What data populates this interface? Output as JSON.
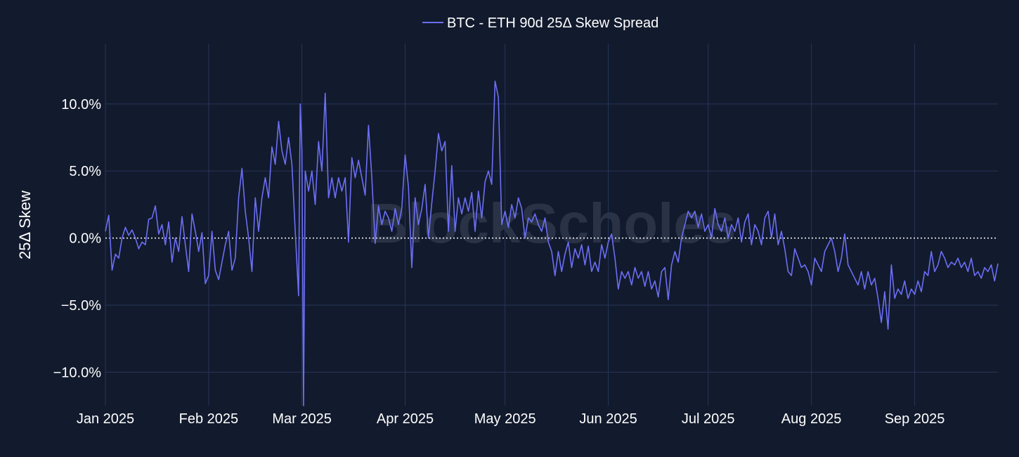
{
  "chart_data": {
    "type": "line",
    "series": [
      {
        "name": "BTC - ETH 90d 25Δ Skew Spread",
        "color": "#6b6ff5",
        "points": [
          [
            "2025-01-01",
            0.5
          ],
          [
            "2025-01-02",
            1.7
          ],
          [
            "2025-01-03",
            -2.4
          ],
          [
            "2025-01-04",
            -1.2
          ],
          [
            "2025-01-05",
            -1.5
          ],
          [
            "2025-01-06",
            0.0
          ],
          [
            "2025-01-07",
            0.8
          ],
          [
            "2025-01-08",
            0.2
          ],
          [
            "2025-01-09",
            0.6
          ],
          [
            "2025-01-10",
            0.0
          ],
          [
            "2025-01-11",
            -0.8
          ],
          [
            "2025-01-12",
            -0.3
          ],
          [
            "2025-01-13",
            -0.5
          ],
          [
            "2025-01-14",
            1.4
          ],
          [
            "2025-01-15",
            1.5
          ],
          [
            "2025-01-16",
            2.4
          ],
          [
            "2025-01-17",
            0.3
          ],
          [
            "2025-01-18",
            1.0
          ],
          [
            "2025-01-19",
            -0.5
          ],
          [
            "2025-01-20",
            1.2
          ],
          [
            "2025-01-21",
            -1.8
          ],
          [
            "2025-01-22",
            0.0
          ],
          [
            "2025-01-23",
            -1.0
          ],
          [
            "2025-01-24",
            1.6
          ],
          [
            "2025-01-25",
            -0.5
          ],
          [
            "2025-01-26",
            -2.5
          ],
          [
            "2025-01-27",
            1.8
          ],
          [
            "2025-01-28",
            0.5
          ],
          [
            "2025-01-29",
            -1.0
          ],
          [
            "2025-01-30",
            0.4
          ],
          [
            "2025-01-31",
            -3.4
          ],
          [
            "2025-02-01",
            -2.8
          ],
          [
            "2025-02-02",
            0.5
          ],
          [
            "2025-02-03",
            -2.4
          ],
          [
            "2025-02-04",
            -3.1
          ],
          [
            "2025-02-05",
            -1.8
          ],
          [
            "2025-02-06",
            -0.5
          ],
          [
            "2025-02-07",
            0.5
          ],
          [
            "2025-02-08",
            -2.4
          ],
          [
            "2025-02-09",
            -1.5
          ],
          [
            "2025-02-10",
            3.0
          ],
          [
            "2025-02-11",
            5.2
          ],
          [
            "2025-02-12",
            2.0
          ],
          [
            "2025-02-13",
            0.0
          ],
          [
            "2025-02-14",
            -2.5
          ],
          [
            "2025-02-15",
            3.0
          ],
          [
            "2025-02-16",
            0.5
          ],
          [
            "2025-02-17",
            3.0
          ],
          [
            "2025-02-18",
            4.5
          ],
          [
            "2025-02-19",
            3.0
          ],
          [
            "2025-02-20",
            6.8
          ],
          [
            "2025-02-21",
            5.5
          ],
          [
            "2025-02-22",
            8.7
          ],
          [
            "2025-02-23",
            6.5
          ],
          [
            "2025-02-24",
            5.5
          ],
          [
            "2025-02-25",
            7.5
          ],
          [
            "2025-02-26",
            5.5
          ],
          [
            "2025-02-27",
            0.5
          ],
          [
            "2025-02-28",
            -4.3
          ],
          [
            "2025-02-28T12",
            10.0
          ],
          [
            "2025-03-01",
            6.6
          ],
          [
            "2025-03-01T12",
            -12.5
          ],
          [
            "2025-03-02",
            5.0
          ],
          [
            "2025-03-03",
            3.5
          ],
          [
            "2025-03-04",
            5.0
          ],
          [
            "2025-03-05",
            2.5
          ],
          [
            "2025-03-06",
            7.2
          ],
          [
            "2025-03-07",
            5.0
          ],
          [
            "2025-03-08",
            10.8
          ],
          [
            "2025-03-09",
            3.0
          ],
          [
            "2025-03-10",
            4.5
          ],
          [
            "2025-03-11",
            3.0
          ],
          [
            "2025-03-12",
            4.5
          ],
          [
            "2025-03-13",
            3.5
          ],
          [
            "2025-03-14",
            4.5
          ],
          [
            "2025-03-15",
            -0.3
          ],
          [
            "2025-03-16",
            6.0
          ],
          [
            "2025-03-17",
            4.5
          ],
          [
            "2025-03-18",
            5.8
          ],
          [
            "2025-03-19",
            4.5
          ],
          [
            "2025-03-20",
            3.2
          ],
          [
            "2025-03-21",
            8.4
          ],
          [
            "2025-03-22",
            4.5
          ],
          [
            "2025-03-23",
            -0.4
          ],
          [
            "2025-03-24",
            2.4
          ],
          [
            "2025-03-25",
            1.0
          ],
          [
            "2025-03-26",
            2.0
          ],
          [
            "2025-03-27",
            1.5
          ],
          [
            "2025-03-28",
            0.5
          ],
          [
            "2025-03-29",
            2.2
          ],
          [
            "2025-03-30",
            1.0
          ],
          [
            "2025-03-31",
            2.2
          ],
          [
            "2025-04-01",
            6.2
          ],
          [
            "2025-04-02",
            3.8
          ],
          [
            "2025-04-03",
            -2.2
          ],
          [
            "2025-04-04",
            3.0
          ],
          [
            "2025-04-05",
            1.0
          ],
          [
            "2025-04-06",
            2.2
          ],
          [
            "2025-04-07",
            4.0
          ],
          [
            "2025-04-08",
            0.0
          ],
          [
            "2025-04-09",
            2.6
          ],
          [
            "2025-04-10",
            5.0
          ],
          [
            "2025-04-11",
            7.8
          ],
          [
            "2025-04-12",
            6.5
          ],
          [
            "2025-04-13",
            7.2
          ],
          [
            "2025-04-14",
            0.5
          ],
          [
            "2025-04-15",
            5.4
          ],
          [
            "2025-04-16",
            0.5
          ],
          [
            "2025-04-17",
            3.0
          ],
          [
            "2025-04-18",
            1.8
          ],
          [
            "2025-04-19",
            3.0
          ],
          [
            "2025-04-20",
            2.0
          ],
          [
            "2025-04-21",
            3.4
          ],
          [
            "2025-04-22",
            0.5
          ],
          [
            "2025-04-23",
            3.5
          ],
          [
            "2025-04-24",
            1.5
          ],
          [
            "2025-04-25",
            4.2
          ],
          [
            "2025-04-26",
            5.0
          ],
          [
            "2025-04-27",
            4.0
          ],
          [
            "2025-04-28",
            11.7
          ],
          [
            "2025-04-29",
            10.5
          ],
          [
            "2025-04-30",
            1.0
          ],
          [
            "2025-05-01",
            2.0
          ],
          [
            "2025-05-02",
            0.8
          ],
          [
            "2025-05-03",
            2.5
          ],
          [
            "2025-05-04",
            1.5
          ],
          [
            "2025-05-05",
            3.0
          ],
          [
            "2025-05-06",
            2.2
          ],
          [
            "2025-05-07",
            0.0
          ],
          [
            "2025-05-08",
            1.5
          ],
          [
            "2025-05-09",
            1.2
          ],
          [
            "2025-05-10",
            1.8
          ],
          [
            "2025-05-11",
            1.0
          ],
          [
            "2025-05-12",
            0.5
          ],
          [
            "2025-05-13",
            1.5
          ],
          [
            "2025-05-14",
            -0.3
          ],
          [
            "2025-05-15",
            -1.0
          ],
          [
            "2025-05-16",
            -2.8
          ],
          [
            "2025-05-17",
            -1.0
          ],
          [
            "2025-05-18",
            -2.5
          ],
          [
            "2025-05-19",
            -1.2
          ],
          [
            "2025-05-20",
            -0.3
          ],
          [
            "2025-05-21",
            -2.2
          ],
          [
            "2025-05-22",
            -0.8
          ],
          [
            "2025-05-23",
            -1.5
          ],
          [
            "2025-05-24",
            -0.5
          ],
          [
            "2025-05-25",
            -2.0
          ],
          [
            "2025-05-26",
            -0.6
          ],
          [
            "2025-05-27",
            -2.5
          ],
          [
            "2025-05-28",
            -1.8
          ],
          [
            "2025-05-29",
            -2.5
          ],
          [
            "2025-05-30",
            -0.5
          ],
          [
            "2025-05-31",
            -1.5
          ],
          [
            "2025-06-01",
            -0.3
          ],
          [
            "2025-06-02",
            0.3
          ],
          [
            "2025-06-03",
            -1.5
          ],
          [
            "2025-06-04",
            -3.8
          ],
          [
            "2025-06-05",
            -2.5
          ],
          [
            "2025-06-06",
            -3.0
          ],
          [
            "2025-06-07",
            -2.5
          ],
          [
            "2025-06-08",
            -3.5
          ],
          [
            "2025-06-09",
            -2.2
          ],
          [
            "2025-06-10",
            -3.0
          ],
          [
            "2025-06-11",
            -2.5
          ],
          [
            "2025-06-12",
            -3.6
          ],
          [
            "2025-06-13",
            -2.5
          ],
          [
            "2025-06-14",
            -3.8
          ],
          [
            "2025-06-15",
            -3.2
          ],
          [
            "2025-06-16",
            -4.4
          ],
          [
            "2025-06-17",
            -2.5
          ],
          [
            "2025-06-18",
            -2.2
          ],
          [
            "2025-06-19",
            -4.6
          ],
          [
            "2025-06-20",
            -2.0
          ],
          [
            "2025-06-21",
            -1.0
          ],
          [
            "2025-06-22",
            -1.8
          ],
          [
            "2025-06-23",
            0.0
          ],
          [
            "2025-06-24",
            1.0
          ],
          [
            "2025-06-25",
            2.0
          ],
          [
            "2025-06-26",
            1.5
          ],
          [
            "2025-06-27",
            2.0
          ],
          [
            "2025-06-28",
            0.8
          ],
          [
            "2025-06-29",
            1.8
          ],
          [
            "2025-06-30",
            0.5
          ],
          [
            "2025-07-01",
            1.0
          ],
          [
            "2025-07-02",
            0.0
          ],
          [
            "2025-07-03",
            2.2
          ],
          [
            "2025-07-04",
            1.0
          ],
          [
            "2025-07-05",
            0.5
          ],
          [
            "2025-07-06",
            1.5
          ],
          [
            "2025-07-07",
            0.0
          ],
          [
            "2025-07-08",
            1.0
          ],
          [
            "2025-07-09",
            0.5
          ],
          [
            "2025-07-10",
            1.5
          ],
          [
            "2025-07-11",
            -0.3
          ],
          [
            "2025-07-12",
            1.2
          ],
          [
            "2025-07-13",
            1.8
          ],
          [
            "2025-07-14",
            -0.5
          ],
          [
            "2025-07-15",
            1.0
          ],
          [
            "2025-07-16",
            0.5
          ],
          [
            "2025-07-17",
            -0.5
          ],
          [
            "2025-07-18",
            1.5
          ],
          [
            "2025-07-19",
            2.0
          ],
          [
            "2025-07-20",
            0.0
          ],
          [
            "2025-07-21",
            1.8
          ],
          [
            "2025-07-22",
            -0.5
          ],
          [
            "2025-07-23",
            0.5
          ],
          [
            "2025-07-24",
            -0.8
          ],
          [
            "2025-07-25",
            -2.5
          ],
          [
            "2025-07-26",
            -2.8
          ],
          [
            "2025-07-27",
            -0.8
          ],
          [
            "2025-07-28",
            -1.5
          ],
          [
            "2025-07-29",
            -2.2
          ],
          [
            "2025-07-30",
            -2.0
          ],
          [
            "2025-07-31",
            -2.5
          ],
          [
            "2025-08-01",
            -3.5
          ],
          [
            "2025-08-02",
            -1.5
          ],
          [
            "2025-08-03",
            -2.0
          ],
          [
            "2025-08-04",
            -2.5
          ],
          [
            "2025-08-05",
            -1.0
          ],
          [
            "2025-08-06",
            -0.5
          ],
          [
            "2025-08-07",
            0.0
          ],
          [
            "2025-08-08",
            -1.0
          ],
          [
            "2025-08-09",
            -2.5
          ],
          [
            "2025-08-10",
            -1.5
          ],
          [
            "2025-08-11",
            0.3
          ],
          [
            "2025-08-12",
            -2.0
          ],
          [
            "2025-08-13",
            -2.5
          ],
          [
            "2025-08-14",
            -3.0
          ],
          [
            "2025-08-15",
            -3.5
          ],
          [
            "2025-08-16",
            -2.5
          ],
          [
            "2025-08-17",
            -3.8
          ],
          [
            "2025-08-18",
            -2.5
          ],
          [
            "2025-08-19",
            -3.5
          ],
          [
            "2025-08-20",
            -3.0
          ],
          [
            "2025-08-21",
            -4.5
          ],
          [
            "2025-08-22",
            -6.3
          ],
          [
            "2025-08-23",
            -4.0
          ],
          [
            "2025-08-24",
            -6.8
          ],
          [
            "2025-08-25",
            -2.0
          ],
          [
            "2025-08-26",
            -4.5
          ],
          [
            "2025-08-27",
            -3.8
          ],
          [
            "2025-08-28",
            -4.2
          ],
          [
            "2025-08-29",
            -3.2
          ],
          [
            "2025-08-30",
            -4.5
          ],
          [
            "2025-08-31",
            -3.8
          ],
          [
            "2025-09-01",
            -4.2
          ],
          [
            "2025-09-02",
            -3.2
          ],
          [
            "2025-09-03",
            -4.0
          ],
          [
            "2025-09-04",
            -2.5
          ],
          [
            "2025-09-05",
            -2.8
          ],
          [
            "2025-09-06",
            -1.0
          ],
          [
            "2025-09-07",
            -2.5
          ],
          [
            "2025-09-08",
            -2.0
          ],
          [
            "2025-09-09",
            -1.0
          ],
          [
            "2025-09-10",
            -1.5
          ],
          [
            "2025-09-11",
            -2.2
          ],
          [
            "2025-09-12",
            -1.8
          ],
          [
            "2025-09-13",
            -2.0
          ],
          [
            "2025-09-14",
            -1.5
          ],
          [
            "2025-09-15",
            -2.2
          ],
          [
            "2025-09-16",
            -1.8
          ],
          [
            "2025-09-17",
            -2.5
          ],
          [
            "2025-09-18",
            -1.5
          ],
          [
            "2025-09-19",
            -2.8
          ],
          [
            "2025-09-20",
            -2.5
          ],
          [
            "2025-09-21",
            -3.0
          ],
          [
            "2025-09-22",
            -2.2
          ],
          [
            "2025-09-23",
            -2.5
          ],
          [
            "2025-09-24",
            -2.0
          ],
          [
            "2025-09-25",
            -3.2
          ],
          [
            "2025-09-26",
            -1.9
          ]
        ]
      }
    ],
    "title": "",
    "xlabel": "",
    "ylabel": "25Δ Skew",
    "xlim": [
      "2025-01-01",
      "2025-09-26"
    ],
    "ylim": [
      -12.5,
      14.5
    ],
    "x_ticks": [
      {
        "date": "2025-01-01",
        "label": "Jan 2025"
      },
      {
        "date": "2025-02-01",
        "label": "Feb 2025"
      },
      {
        "date": "2025-03-01",
        "label": "Mar 2025"
      },
      {
        "date": "2025-04-01",
        "label": "Apr 2025"
      },
      {
        "date": "2025-05-01",
        "label": "May 2025"
      },
      {
        "date": "2025-06-01",
        "label": "Jun 2025"
      },
      {
        "date": "2025-07-01",
        "label": "Jul 2025"
      },
      {
        "date": "2025-08-01",
        "label": "Aug 2025"
      },
      {
        "date": "2025-09-01",
        "label": "Sep 2025"
      }
    ],
    "y_ticks": [
      {
        "value": 10,
        "label": "10.0%"
      },
      {
        "value": 5,
        "label": "5.0%"
      },
      {
        "value": 0,
        "label": "0.0%"
      },
      {
        "value": -5,
        "label": "−5.0%"
      },
      {
        "value": -10,
        "label": "−10.0%"
      }
    ],
    "zero_line": "dotted white",
    "grid": true,
    "legend_position": "top-center",
    "watermark": "BlockScholes",
    "colors": {
      "background": "#121a2d",
      "grid": "#263559",
      "line": "#6b6ff5"
    }
  }
}
